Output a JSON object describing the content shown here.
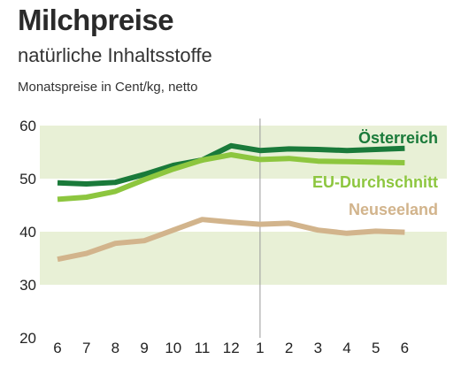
{
  "header": {
    "title": "Milchpreise",
    "subtitle": "natürliche Inhaltsstoffe",
    "note": "Monatspreise in Cent/kg, netto"
  },
  "chart_data": {
    "type": "line",
    "title": "Milchpreise",
    "subtitle": "natürliche Inhaltsstoffe",
    "ylabel": "Monatspreise in Cent/kg, netto",
    "categories": [
      "6",
      "7",
      "8",
      "9",
      "10",
      "11",
      "12",
      "1",
      "2",
      "3",
      "4",
      "5",
      "6"
    ],
    "ylim": [
      20,
      60
    ],
    "yticks": [
      60,
      50,
      40,
      30,
      20
    ],
    "shaded_bands": [
      [
        50,
        60
      ],
      [
        30,
        40
      ]
    ],
    "year_divider_after_index": 7,
    "series": [
      {
        "name": "Österreich",
        "color": "#1a7a3a",
        "values": [
          49.2,
          49.0,
          49.3,
          50.8,
          52.5,
          53.5,
          56.2,
          55.3,
          55.6,
          55.5,
          55.3,
          55.5,
          55.7
        ]
      },
      {
        "name": "EU-Durchschnitt",
        "color": "#8dc63f",
        "values": [
          46.1,
          46.5,
          47.6,
          49.8,
          51.8,
          53.5,
          54.5,
          53.6,
          53.8,
          53.3,
          53.2,
          53.1,
          53.0
        ]
      },
      {
        "name": "Neuseeland",
        "color": "#d2b48c",
        "values": [
          34.8,
          35.9,
          37.8,
          38.3,
          40.3,
          42.3,
          41.8,
          41.4,
          41.6,
          40.3,
          39.7,
          40.1,
          39.9
        ]
      }
    ]
  }
}
